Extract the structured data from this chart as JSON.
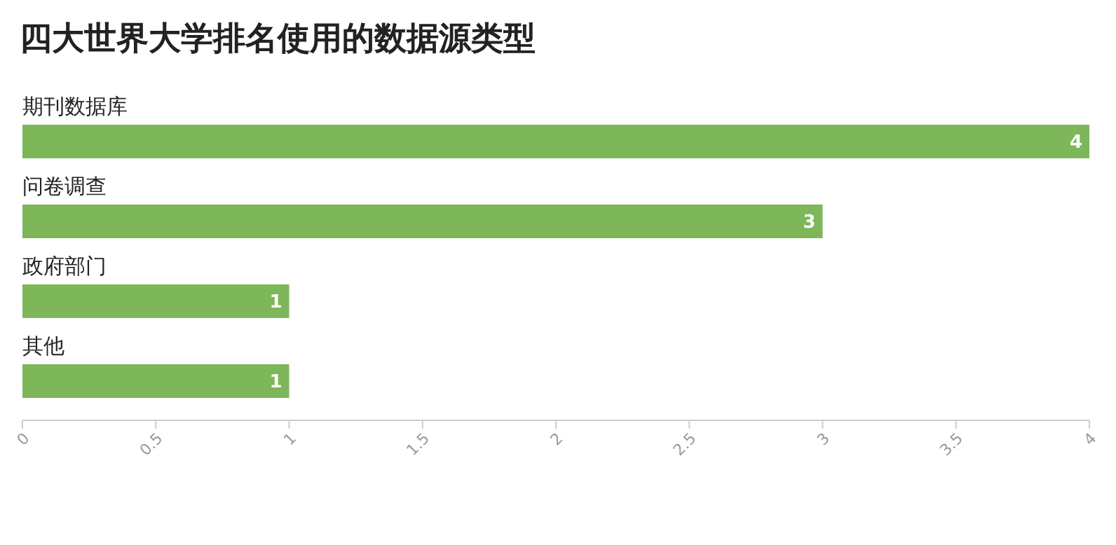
{
  "chart_data": {
    "type": "bar",
    "orientation": "horizontal",
    "title": "四大世界大学排名使用的数据源类型",
    "categories": [
      "期刊数据库",
      "问卷调查",
      "政府部门",
      "其他"
    ],
    "values": [
      4,
      3,
      1,
      1
    ],
    "color": "#7db75a",
    "xlim": [
      0,
      4
    ],
    "xticks": [
      0,
      0.5,
      1,
      1.5,
      2,
      2.5,
      3,
      3.5,
      4
    ],
    "data_labels": true,
    "grid": false
  }
}
